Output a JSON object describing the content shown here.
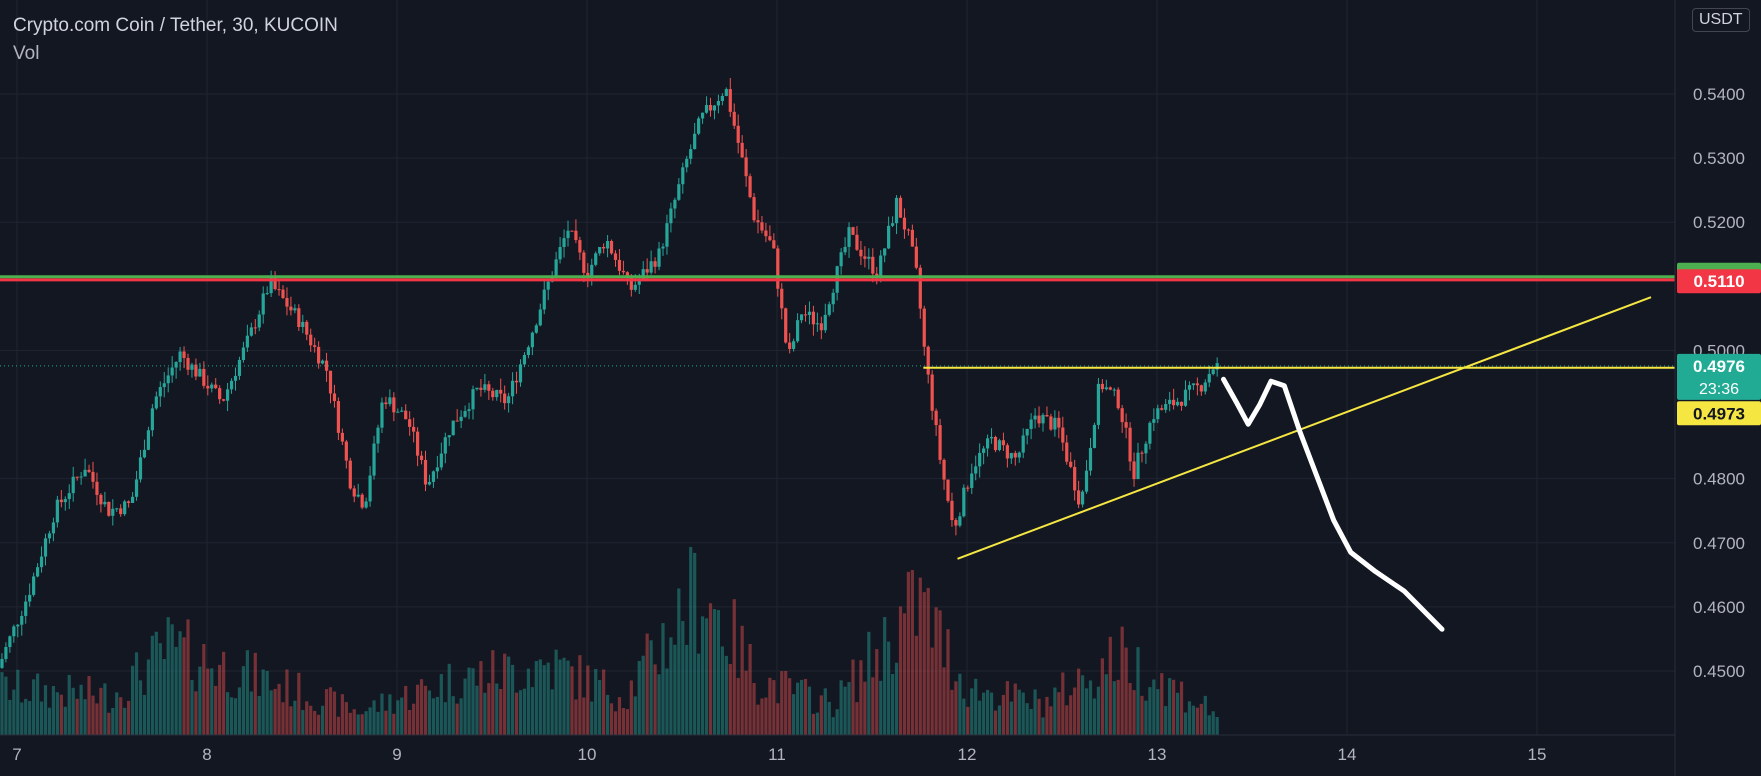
{
  "header": {
    "title": "Crypto.com Coin / Tether, 30, KUCOIN",
    "volume_label": "Vol",
    "currency": "USDT"
  },
  "colors": {
    "background": "#131722",
    "grid": "#1f2430",
    "up": "#26a69a",
    "down": "#ef5350",
    "trend": "#f5e642",
    "drawing": "#ffffff",
    "green_tag": "#4caf50",
    "red_tag": "#f23645",
    "teal_tag": "#22ab94",
    "yellow_tag": "#f5e642"
  },
  "chart_data": {
    "type": "candlestick",
    "title": "Crypto.com Coin / Tether, 30, KUCOIN",
    "y_ticks": [
      "0.5400",
      "0.5300",
      "0.5200",
      "0.5000",
      "0.4800",
      "0.4700",
      "0.4600",
      "0.4500"
    ],
    "y_tick_values": [
      0.54,
      0.53,
      0.52,
      0.5,
      0.48,
      0.47,
      0.46,
      0.45
    ],
    "x_ticks": [
      "7",
      "8",
      "9",
      "10",
      "11",
      "12",
      "13",
      "14",
      "15"
    ],
    "x_tick_values": [
      7,
      8,
      9,
      10,
      11,
      12,
      13,
      14,
      15
    ],
    "price_tags": {
      "green": "0.5115",
      "red": "0.5110",
      "current": "0.4976",
      "countdown": "23:36",
      "yellow": "0.4973"
    },
    "horizontal_levels": [
      {
        "name": "green-level",
        "price": 0.5115
      },
      {
        "name": "red-level",
        "price": 0.511
      },
      {
        "name": "yellow-level",
        "price": 0.4973,
        "x_from": 11.77
      }
    ],
    "trendline": {
      "from": [
        11.95,
        0.4675
      ],
      "to": [
        15.6,
        0.5083
      ]
    },
    "projection_drawing": [
      [
        13.35,
        0.4955
      ],
      [
        13.42,
        0.4918
      ],
      [
        13.48,
        0.4885
      ],
      [
        13.54,
        0.4915
      ],
      [
        13.6,
        0.4952
      ],
      [
        13.67,
        0.4945
      ],
      [
        13.75,
        0.4875
      ],
      [
        13.84,
        0.4805
      ],
      [
        13.93,
        0.4735
      ],
      [
        14.02,
        0.4685
      ],
      [
        14.15,
        0.4655
      ],
      [
        14.3,
        0.4625
      ],
      [
        14.5,
        0.4565
      ]
    ],
    "price_anchors": [
      [
        6.9,
        0.449
      ],
      [
        7.08,
        0.462
      ],
      [
        7.22,
        0.475
      ],
      [
        7.38,
        0.482
      ],
      [
        7.5,
        0.475
      ],
      [
        7.62,
        0.476
      ],
      [
        7.74,
        0.492
      ],
      [
        7.88,
        0.4995
      ],
      [
        8.1,
        0.492
      ],
      [
        8.25,
        0.5025
      ],
      [
        8.35,
        0.5105
      ],
      [
        8.5,
        0.505
      ],
      [
        8.65,
        0.497
      ],
      [
        8.78,
        0.479
      ],
      [
        8.85,
        0.476
      ],
      [
        8.95,
        0.493
      ],
      [
        9.08,
        0.489
      ],
      [
        9.18,
        0.479
      ],
      [
        9.3,
        0.488
      ],
      [
        9.45,
        0.494
      ],
      [
        9.6,
        0.492
      ],
      [
        9.72,
        0.502
      ],
      [
        9.8,
        0.509
      ],
      [
        9.92,
        0.519
      ],
      [
        10.02,
        0.512
      ],
      [
        10.12,
        0.5175
      ],
      [
        10.25,
        0.5095
      ],
      [
        10.4,
        0.515
      ],
      [
        10.55,
        0.53
      ],
      [
        10.62,
        0.536
      ],
      [
        10.75,
        0.541
      ],
      [
        10.82,
        0.532
      ],
      [
        10.9,
        0.521
      ],
      [
        11.0,
        0.516
      ],
      [
        11.08,
        0.4985
      ],
      [
        11.15,
        0.506
      ],
      [
        11.25,
        0.504
      ],
      [
        11.4,
        0.518
      ],
      [
        11.55,
        0.512
      ],
      [
        11.65,
        0.523
      ],
      [
        11.72,
        0.517
      ],
      [
        11.76,
        0.511
      ],
      [
        11.8,
        0.499
      ],
      [
        11.88,
        0.483
      ],
      [
        11.95,
        0.472
      ],
      [
        12.05,
        0.482
      ],
      [
        12.15,
        0.486
      ],
      [
        12.28,
        0.483
      ],
      [
        12.38,
        0.49
      ],
      [
        12.5,
        0.488
      ],
      [
        12.62,
        0.476
      ],
      [
        12.72,
        0.495
      ],
      [
        12.82,
        0.492
      ],
      [
        12.9,
        0.481
      ],
      [
        13.0,
        0.49
      ],
      [
        13.12,
        0.492
      ],
      [
        13.25,
        0.4945
      ],
      [
        13.32,
        0.4976
      ]
    ],
    "volume_anchors": [
      [
        6.9,
        0.3
      ],
      [
        7.5,
        0.25
      ],
      [
        7.8,
        0.55
      ],
      [
        8.3,
        0.35
      ],
      [
        8.8,
        0.15
      ],
      [
        9.3,
        0.35
      ],
      [
        9.8,
        0.45
      ],
      [
        10.2,
        0.25
      ],
      [
        10.6,
        0.95
      ],
      [
        10.9,
        0.35
      ],
      [
        11.3,
        0.2
      ],
      [
        11.75,
        0.85
      ],
      [
        12.0,
        0.3
      ],
      [
        12.4,
        0.2
      ],
      [
        12.8,
        0.5
      ],
      [
        13.3,
        0.15
      ]
    ]
  }
}
